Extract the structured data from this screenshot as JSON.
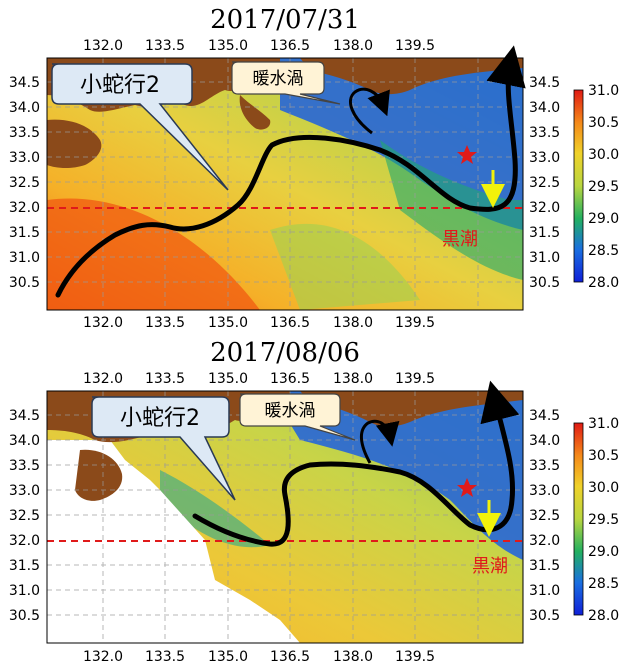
{
  "panels": [
    {
      "title": "2017/07/31",
      "callout_meander": "小蛇行2",
      "callout_eddy": "暖水渦",
      "label_current": "黒潮"
    },
    {
      "title": "2017/08/06",
      "callout_meander": "小蛇行2",
      "callout_eddy": "暖水渦",
      "label_current": "黒潮"
    }
  ],
  "axes": {
    "lon_ticks": [
      "132.0",
      "133.5",
      "135.0",
      "136.5",
      "138.0",
      "139.5"
    ],
    "lat_ticks": [
      "34.5",
      "34.0",
      "33.5",
      "33.0",
      "32.5",
      "32.0",
      "31.5",
      "31.0",
      "30.5"
    ]
  },
  "colorbar": {
    "ticks": [
      "31.0",
      "30.5",
      "30.0",
      "29.5",
      "29.0",
      "28.5",
      "28.0"
    ],
    "min": 28.0,
    "max": 31.0
  },
  "colors": {
    "land": "#8b4a1a",
    "current_path": "#000000",
    "reference_line": "#e01a1a",
    "star": "#e01a1a",
    "arrow": "#f2f20a",
    "callout_fill": "#dde9f5",
    "callout_eddy_fill": "#fff3d6"
  }
}
